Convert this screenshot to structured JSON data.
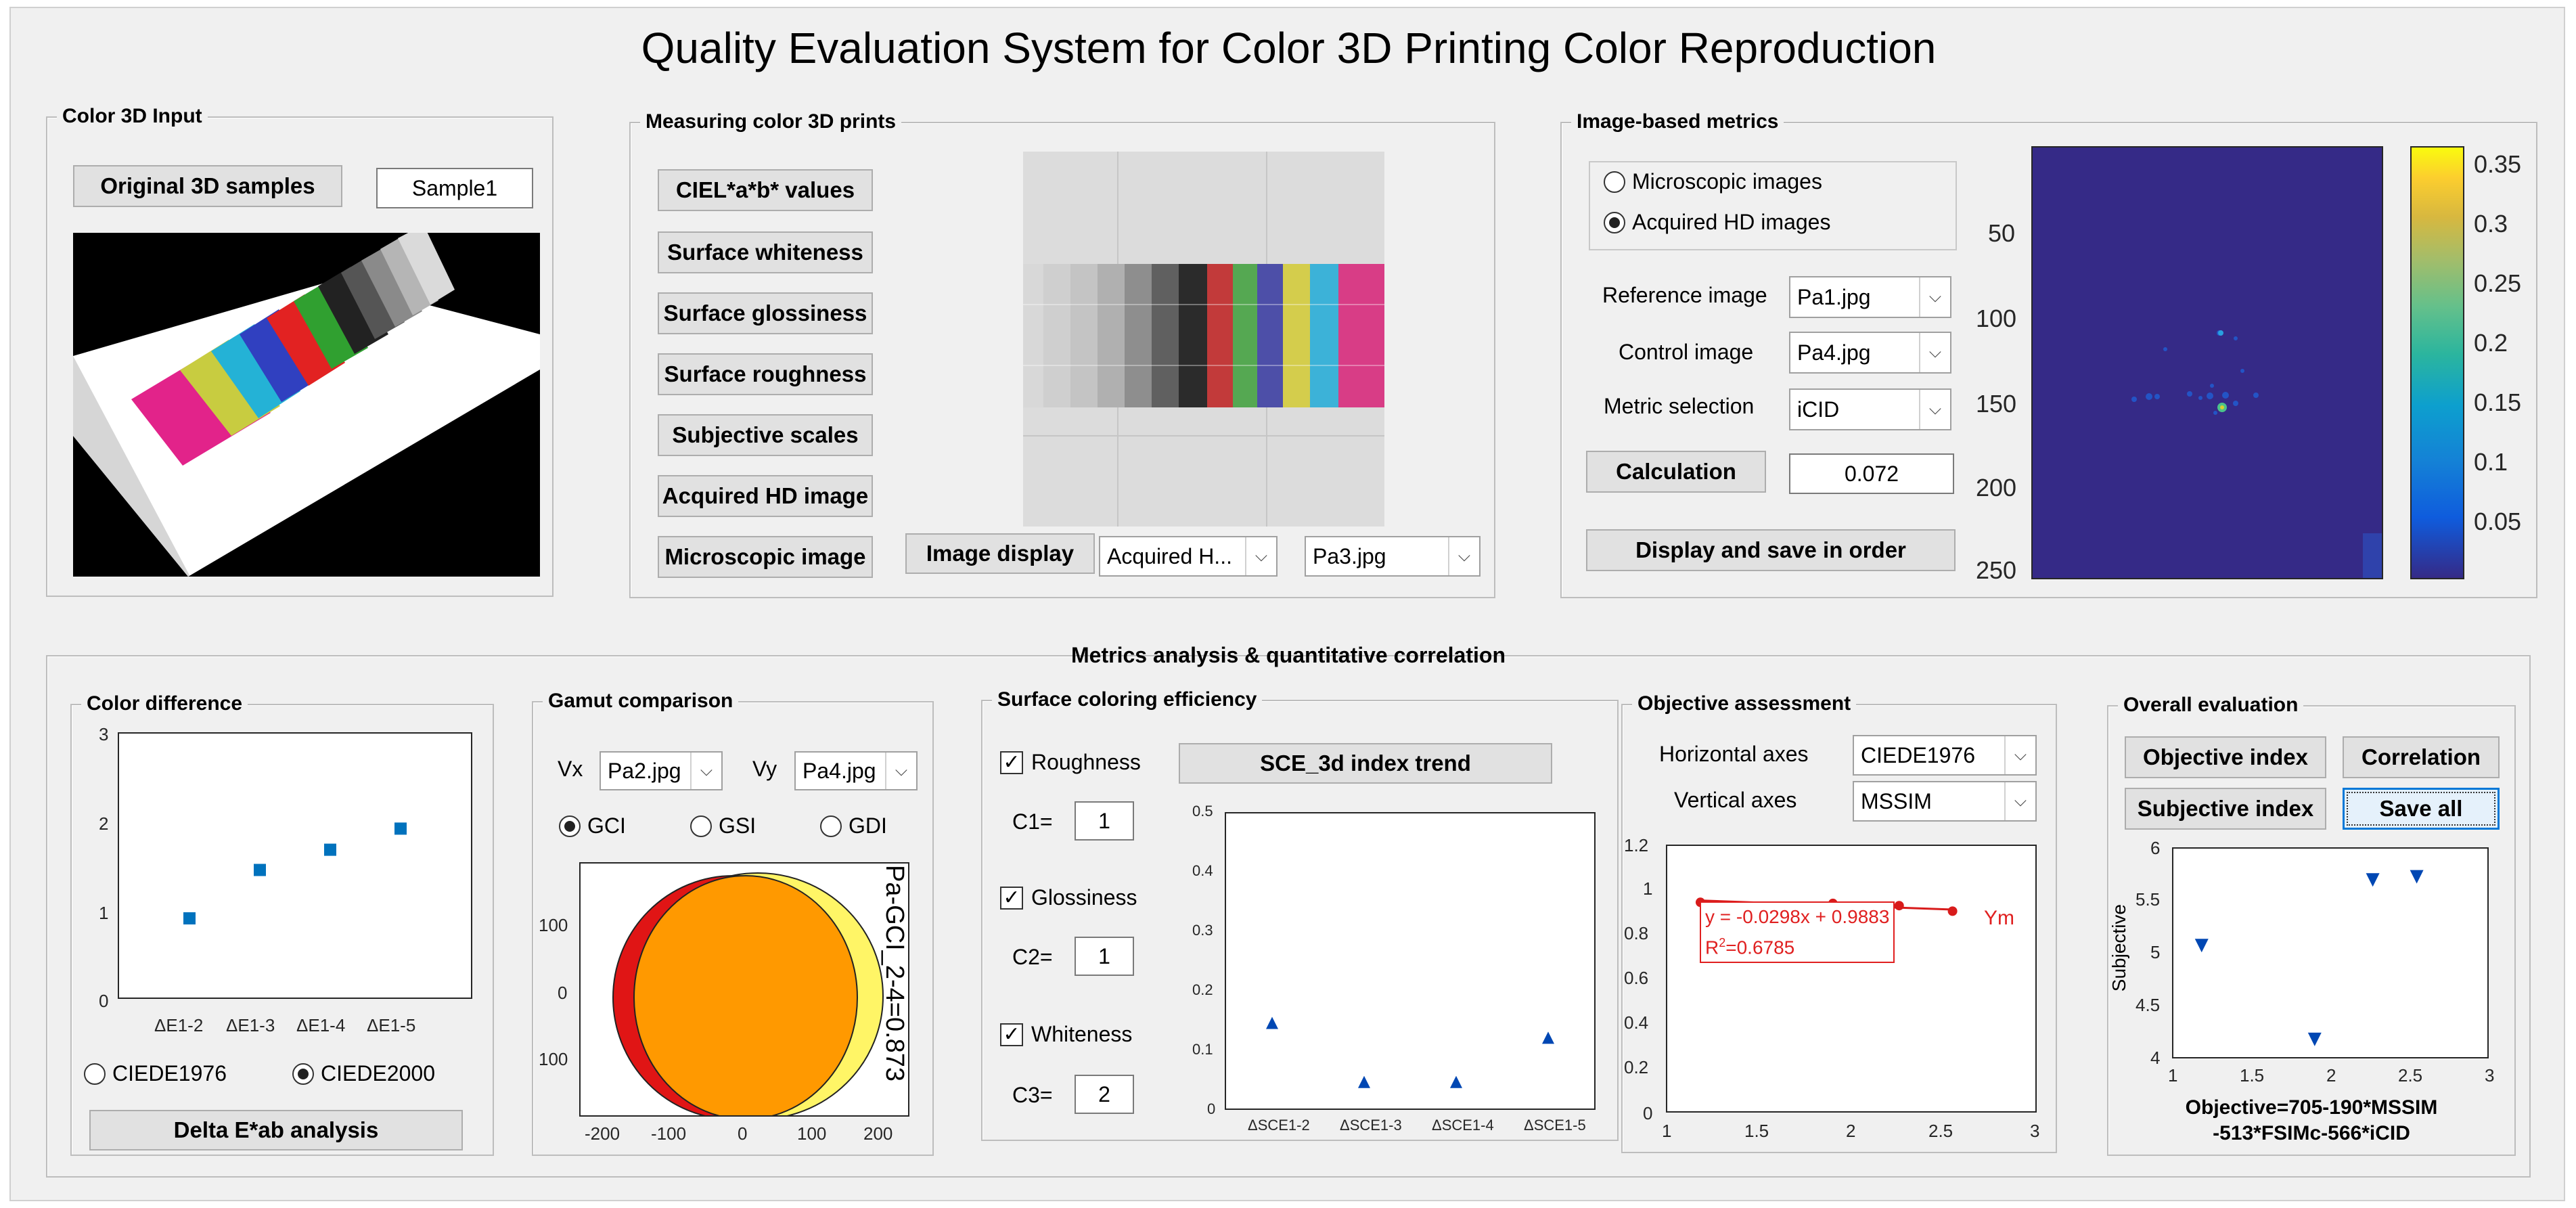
{
  "app": {
    "title": "Quality Evaluation System for Color 3D Printing Color Reproduction"
  },
  "input_panel": {
    "title": "Color 3D Input",
    "original_button": "Original 3D samples",
    "sample_value": "Sample1"
  },
  "measuring_panel": {
    "title": "Measuring color 3D prints",
    "buttons": [
      "CIEL*a*b* values",
      "Surface whiteness",
      "Surface glossiness",
      "Surface roughness",
      "Subjective scales",
      "Acquired HD image",
      "Microscopic image"
    ],
    "image_display_button": "Image display",
    "source_select": "Acquired H...",
    "file_select": "Pa3.jpg"
  },
  "metrics_panel": {
    "title": "Image-based metrics",
    "radio_micro": "Microscopic images",
    "radio_hd": "Acquired HD images",
    "reference_label": "Reference image",
    "reference_value": "Pa1.jpg",
    "control_label": "Control image",
    "control_value": "Pa4.jpg",
    "metric_label": "Metric selection",
    "metric_value": "iCID",
    "calc_button": "Calculation",
    "calc_value": "0.072",
    "display_button": "Display and save in order",
    "map_yticks": [
      "50",
      "100",
      "150",
      "200",
      "250"
    ],
    "colorbar_ticks": [
      "0.35",
      "0.3",
      "0.25",
      "0.2",
      "0.15",
      "0.1",
      "0.05"
    ]
  },
  "bottom_title": "Metrics analysis & quantitative correlation",
  "color_diff": {
    "title": "Color difference",
    "radio_1976": "CIEDE1976",
    "radio_2000": "CIEDE2000",
    "button": "Delta E*ab analysis",
    "yticks": [
      "3",
      "2",
      "1",
      "0"
    ],
    "xticks": [
      "ΔE1-2",
      "ΔE1-3",
      "ΔE1-4",
      "ΔE1-5"
    ]
  },
  "gamut": {
    "title": "Gamut comparison",
    "vx_label": "Vx",
    "vx_value": "Pa2.jpg",
    "vy_label": "Vy",
    "vy_value": "Pa4.jpg",
    "radio_gci": "GCI",
    "radio_gsi": "GSI",
    "radio_gdi": "GDI",
    "annotation": "Pa-GCI_2-4=0.873",
    "yticks": [
      "100",
      "0",
      "100"
    ],
    "xticks": [
      "-200",
      "-100",
      "0",
      "100",
      "200"
    ]
  },
  "sce": {
    "title": "Surface coloring efficiency",
    "rough_label": "Roughness",
    "c1_label": "C1=",
    "c1_value": "1",
    "gloss_label": "Glossiness",
    "c2_label": "C2=",
    "c2_value": "1",
    "white_label": "Whiteness",
    "c3_label": "C3=",
    "c3_value": "2",
    "trend_button": "SCE_3d index trend",
    "yticks": [
      "0.5",
      "0.4",
      "0.3",
      "0.2",
      "0.1",
      "0"
    ],
    "xticks": [
      "ΔSCE1-2",
      "ΔSCE1-3",
      "ΔSCE1-4",
      "ΔSCE1-5"
    ]
  },
  "objective": {
    "title": "Objective assessment",
    "h_label": "Horizontal axes",
    "h_value": "CIEDE1976",
    "v_label": "Vertical axes",
    "v_value": "MSSIM",
    "equation": "y = -0.0298x + 0.9883",
    "r2_prefix": "R",
    "r2_sup": "2",
    "r2_value": "=0.6785",
    "legend": "Ym",
    "yticks": [
      "1.2",
      "1",
      "0.8",
      "0.6",
      "0.4",
      "0.2",
      "0"
    ],
    "xticks": [
      "1",
      "1.5",
      "2",
      "2.5",
      "3"
    ]
  },
  "overall": {
    "title": "Overall evaluation",
    "objective_button": "Objective index",
    "correlation_button": "Correlation",
    "subjective_button": "Subjective index",
    "save_button": "Save all",
    "ylabel": "Subjective",
    "xlabel_line1": "Objective=705-190*MSSIM",
    "xlabel_line2": "-513*FSIMc-566*iCID",
    "yticks": [
      "6",
      "5.5",
      "5",
      "4.5",
      "4"
    ],
    "xticks": [
      "1",
      "1.5",
      "2",
      "2.5",
      "3"
    ]
  },
  "chart_data": [
    {
      "type": "scatter",
      "name": "color-difference",
      "categories": [
        "ΔE1-2",
        "ΔE1-3",
        "ΔE1-4",
        "ΔE1-5"
      ],
      "values": [
        0.9,
        1.45,
        1.68,
        1.92
      ],
      "ylim": [
        0,
        3
      ],
      "marker": "square",
      "color": "#0072bd"
    },
    {
      "type": "scatter",
      "name": "sce",
      "categories": [
        "ΔSCE1-2",
        "ΔSCE1-3",
        "ΔSCE1-4",
        "ΔSCE1-5"
      ],
      "values": [
        0.145,
        0.045,
        0.045,
        0.12
      ],
      "ylim": [
        0,
        0.5
      ],
      "marker": "triangle-up",
      "color": "#0047b3"
    },
    {
      "type": "line",
      "name": "objective",
      "x": [
        1.18,
        1.9,
        2.26,
        2.55
      ],
      "y": [
        0.945,
        0.94,
        0.93,
        0.905
      ],
      "fit": {
        "slope": -0.0298,
        "intercept": 0.9883
      },
      "xlim": [
        1,
        3
      ],
      "ylim": [
        0,
        1.2
      ],
      "color": "#d81b1b",
      "legend": "Ym"
    },
    {
      "type": "scatter",
      "name": "overall",
      "x": [
        1.18,
        1.9,
        2.27,
        2.55
      ],
      "y": [
        5.07,
        4.17,
        5.7,
        5.73
      ],
      "xlim": [
        1,
        3
      ],
      "ylim": [
        4,
        6
      ],
      "marker": "triangle-down",
      "color": "#0047b3",
      "ylabel": "Subjective"
    },
    {
      "type": "heatmap",
      "name": "difference-map",
      "range": [
        0,
        0.37
      ],
      "colormap": "parula",
      "ylim": [
        1,
        250
      ]
    }
  ]
}
